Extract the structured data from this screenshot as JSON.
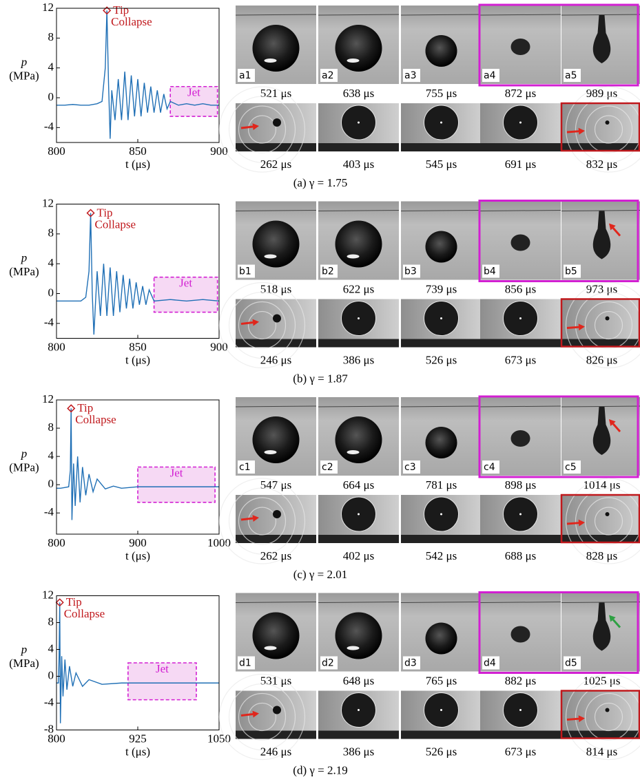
{
  "chart_data": [
    {
      "type": "line",
      "caption": "(a) γ = 1.75",
      "ylabel": "p",
      "yunit": "(MPa)",
      "xlabel": "t (μs)",
      "xlim": [
        800,
        900
      ],
      "xticks": [
        800,
        850,
        900
      ],
      "ylim": [
        -6,
        12
      ],
      "yticks": [
        -4,
        0,
        4,
        8,
        12
      ],
      "color": "#1f6fb5",
      "peak_label": "Tip",
      "peak_sublabel": "Collapse",
      "box_label": "Jet",
      "box_x": [
        870,
        899
      ],
      "box_y": [
        -2.5,
        1.5
      ],
      "x": [
        800,
        805,
        810,
        815,
        820,
        825,
        828,
        830,
        831,
        832,
        833,
        834,
        836,
        838,
        840,
        842,
        844,
        846,
        848,
        850,
        852,
        854,
        856,
        858,
        860,
        862,
        864,
        866,
        868,
        870,
        875,
        880,
        885,
        890,
        895,
        900
      ],
      "values": [
        -1,
        -1,
        -0.9,
        -1,
        -1,
        -0.8,
        -0.5,
        4,
        11.7,
        2,
        -5.5,
        1,
        -3,
        2.5,
        -3,
        3.5,
        -3,
        3,
        -2.5,
        2.5,
        -2.5,
        2,
        -2,
        1.5,
        -2,
        1,
        -2,
        0.5,
        -1.5,
        -0.5,
        -1,
        -0.8,
        -1,
        -0.8,
        -1,
        -1
      ]
    },
    {
      "type": "line",
      "caption": "(b) γ = 1.87",
      "ylabel": "p",
      "yunit": "(MPa)",
      "xlabel": "t (μs)",
      "xlim": [
        800,
        900
      ],
      "xticks": [
        800,
        850,
        900
      ],
      "ylim": [
        -6,
        12
      ],
      "yticks": [
        -4,
        0,
        4,
        8,
        12
      ],
      "color": "#1f6fb5",
      "peak_label": "Tip",
      "peak_sublabel": "Collapse",
      "box_label": "Jet",
      "box_x": [
        860,
        899
      ],
      "box_y": [
        -2.5,
        2.2
      ],
      "x": [
        800,
        805,
        810,
        815,
        818,
        820,
        821,
        822,
        823,
        825,
        827,
        829,
        831,
        833,
        835,
        837,
        839,
        841,
        843,
        845,
        847,
        849,
        851,
        853,
        855,
        857,
        860,
        870,
        880,
        890,
        900
      ],
      "values": [
        -1,
        -1,
        -1,
        -1,
        -0.5,
        3,
        10.8,
        0,
        -5.5,
        3,
        -3,
        4,
        -3,
        3.5,
        -3,
        3,
        -2.5,
        2.5,
        -2,
        2,
        -2,
        1.5,
        -1.5,
        1,
        -1.5,
        0.5,
        -1,
        -0.8,
        -1,
        -0.8,
        -1
      ]
    },
    {
      "type": "line",
      "caption": "(c) γ = 2.01",
      "ylabel": "p",
      "yunit": "(MPa)",
      "xlabel": "t (μs)",
      "xlim": [
        800,
        1000
      ],
      "xticks": [
        800,
        900,
        1000
      ],
      "ylim": [
        -7,
        12
      ],
      "yticks": [
        -4,
        0,
        4,
        8,
        12
      ],
      "color": "#1f6fb5",
      "peak_label": "Tip",
      "peak_sublabel": "Collapse",
      "box_label": "Jet",
      "box_x": [
        900,
        995
      ],
      "box_y": [
        -2.5,
        2.5
      ],
      "x": [
        800,
        805,
        810,
        815,
        817,
        818,
        819,
        821,
        823,
        826,
        829,
        832,
        836,
        840,
        845,
        850,
        860,
        870,
        880,
        900,
        950,
        1000
      ],
      "values": [
        -0.5,
        -0.5,
        -0.4,
        -0.3,
        2,
        10.8,
        -5,
        3,
        -3,
        4,
        -2.5,
        2.5,
        -1.5,
        1.5,
        -1,
        0.8,
        -0.6,
        -0.2,
        -0.5,
        -0.3,
        -0.3,
        -0.3
      ]
    },
    {
      "type": "line",
      "caption": "(d) γ = 2.19",
      "ylabel": "p",
      "yunit": "(MPa)",
      "xlabel": "t (μs)",
      "xlim": [
        800,
        1050
      ],
      "xticks": [
        800,
        925,
        1050
      ],
      "ylim": [
        -8,
        12
      ],
      "yticks": [
        -8,
        -4,
        0,
        4,
        8,
        12
      ],
      "color": "#1f6fb5",
      "peak_label": "Tip",
      "peak_sublabel": "Collapse",
      "box_label": "Jet",
      "box_x": [
        910,
        1015
      ],
      "box_y": [
        -3.5,
        2
      ],
      "x": [
        800,
        803,
        804,
        805,
        806,
        808,
        810,
        813,
        816,
        820,
        825,
        830,
        840,
        850,
        870,
        900,
        950,
        1000,
        1050
      ],
      "values": [
        -1,
        -1,
        3,
        11,
        -7,
        3,
        -3,
        2.5,
        -2,
        1.5,
        -1.5,
        0.5,
        -1.5,
        -0.5,
        -1.2,
        -1,
        -1,
        -1,
        -1
      ]
    }
  ],
  "panels": [
    {
      "top_frames": [
        {
          "label": "a1",
          "time": "521 μs"
        },
        {
          "label": "a2",
          "time": "638 μs"
        },
        {
          "label": "a3",
          "time": "755 μs"
        },
        {
          "label": "a4",
          "time": "872 μs"
        },
        {
          "label": "a5",
          "time": "989 μs"
        }
      ],
      "bottom_times": [
        "262 μs",
        "403 μs",
        "545 μs",
        "691 μs",
        "832 μs"
      ]
    },
    {
      "top_frames": [
        {
          "label": "b1",
          "time": "518 μs"
        },
        {
          "label": "b2",
          "time": "622 μs"
        },
        {
          "label": "b3",
          "time": "739 μs"
        },
        {
          "label": "b4",
          "time": "856 μs"
        },
        {
          "label": "b5",
          "time": "973 μs"
        }
      ],
      "bottom_times": [
        "246 μs",
        "386 μs",
        "526 μs",
        "673 μs",
        "826 μs"
      ]
    },
    {
      "top_frames": [
        {
          "label": "c1",
          "time": "547 μs"
        },
        {
          "label": "c2",
          "time": "664 μs"
        },
        {
          "label": "c3",
          "time": "781 μs"
        },
        {
          "label": "c4",
          "time": "898 μs"
        },
        {
          "label": "c5",
          "time": "1014 μs"
        }
      ],
      "bottom_times": [
        "262 μs",
        "402 μs",
        "542 μs",
        "688 μs",
        "828 μs"
      ]
    },
    {
      "top_frames": [
        {
          "label": "d1",
          "time": "531 μs"
        },
        {
          "label": "d2",
          "time": "648 μs"
        },
        {
          "label": "d3",
          "time": "765 μs"
        },
        {
          "label": "d4",
          "time": "882 μs"
        },
        {
          "label": "d5",
          "time": "1025 μs"
        }
      ],
      "bottom_times": [
        "246 μs",
        "386 μs",
        "526 μs",
        "673 μs",
        "814 μs"
      ]
    }
  ]
}
